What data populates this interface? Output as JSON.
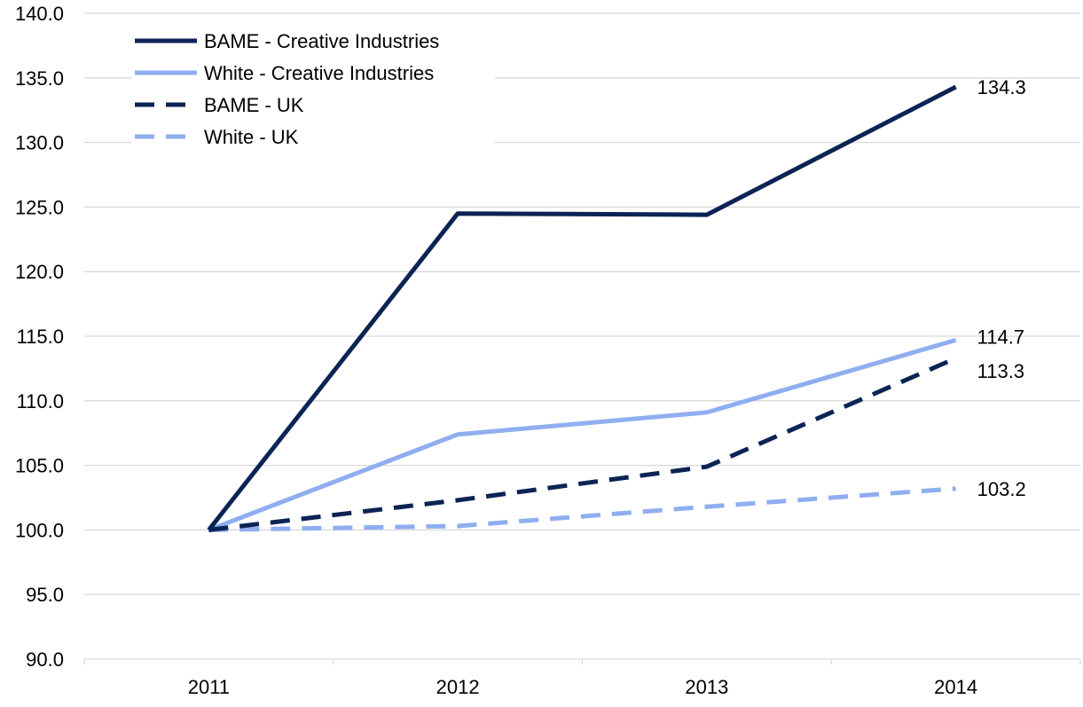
{
  "chart_data": {
    "type": "line",
    "title": "",
    "xlabel": "",
    "ylabel": "",
    "categories": [
      "2011",
      "2012",
      "2013",
      "2014"
    ],
    "ylim": [
      90,
      140
    ],
    "ytick_step": 5,
    "ytick_labels": [
      "90.0",
      "95.0",
      "100.0",
      "105.0",
      "110.0",
      "115.0",
      "120.0",
      "125.0",
      "130.0",
      "135.0",
      "140.0"
    ],
    "grid": "horizontal",
    "legend_position": "top-left",
    "series": [
      {
        "name": "BAME - Creative Industries",
        "values": [
          100.0,
          124.5,
          124.4,
          134.3
        ],
        "color": "#0b2454",
        "dash": "solid",
        "end_label": "134.3"
      },
      {
        "name": "White - Creative Industries",
        "values": [
          100.0,
          107.4,
          109.1,
          114.7
        ],
        "color": "#8faef0",
        "dash": "solid",
        "end_label": "114.7"
      },
      {
        "name": "BAME - UK",
        "values": [
          100.0,
          102.3,
          104.9,
          113.3
        ],
        "color": "#0b2454",
        "dash": "dashed",
        "end_label": "113.3"
      },
      {
        "name": "White - UK",
        "values": [
          100.0,
          100.3,
          101.8,
          103.2
        ],
        "color": "#8faef0",
        "dash": "dashed",
        "end_label": "103.2"
      }
    ]
  }
}
